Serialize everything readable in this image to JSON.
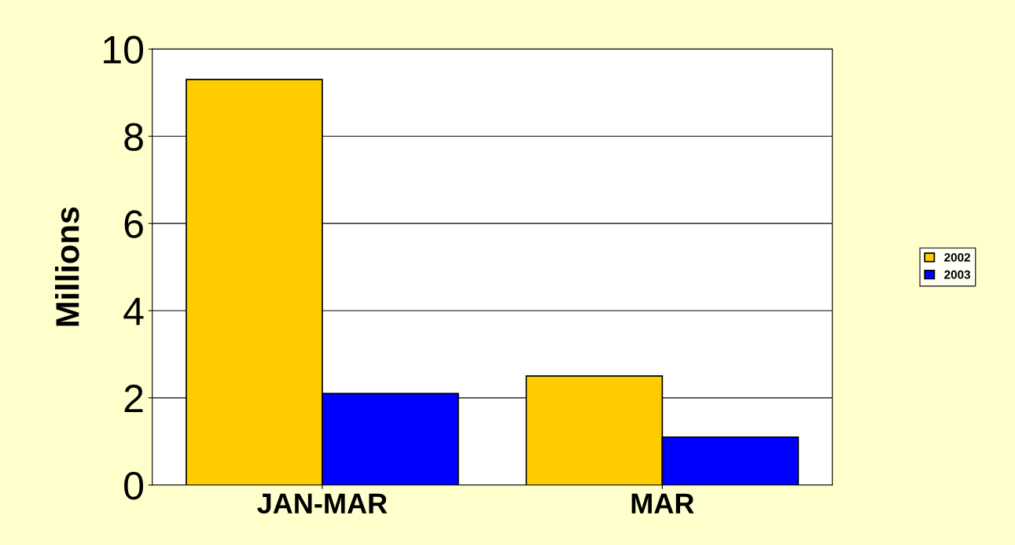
{
  "chart_data": {
    "type": "bar",
    "ylabel": "Millions",
    "categories": [
      "JAN-MAR",
      "MAR"
    ],
    "series": [
      {
        "name": "2002",
        "color": "#ffcc00",
        "values": [
          9.3,
          2.5
        ]
      },
      {
        "name": "2003",
        "color": "#0000ff",
        "values": [
          2.1,
          1.1
        ]
      }
    ],
    "ylim": [
      0,
      10
    ],
    "yticks": [
      0,
      2,
      4,
      6,
      8,
      10
    ],
    "grid": "y",
    "legend": "right"
  }
}
